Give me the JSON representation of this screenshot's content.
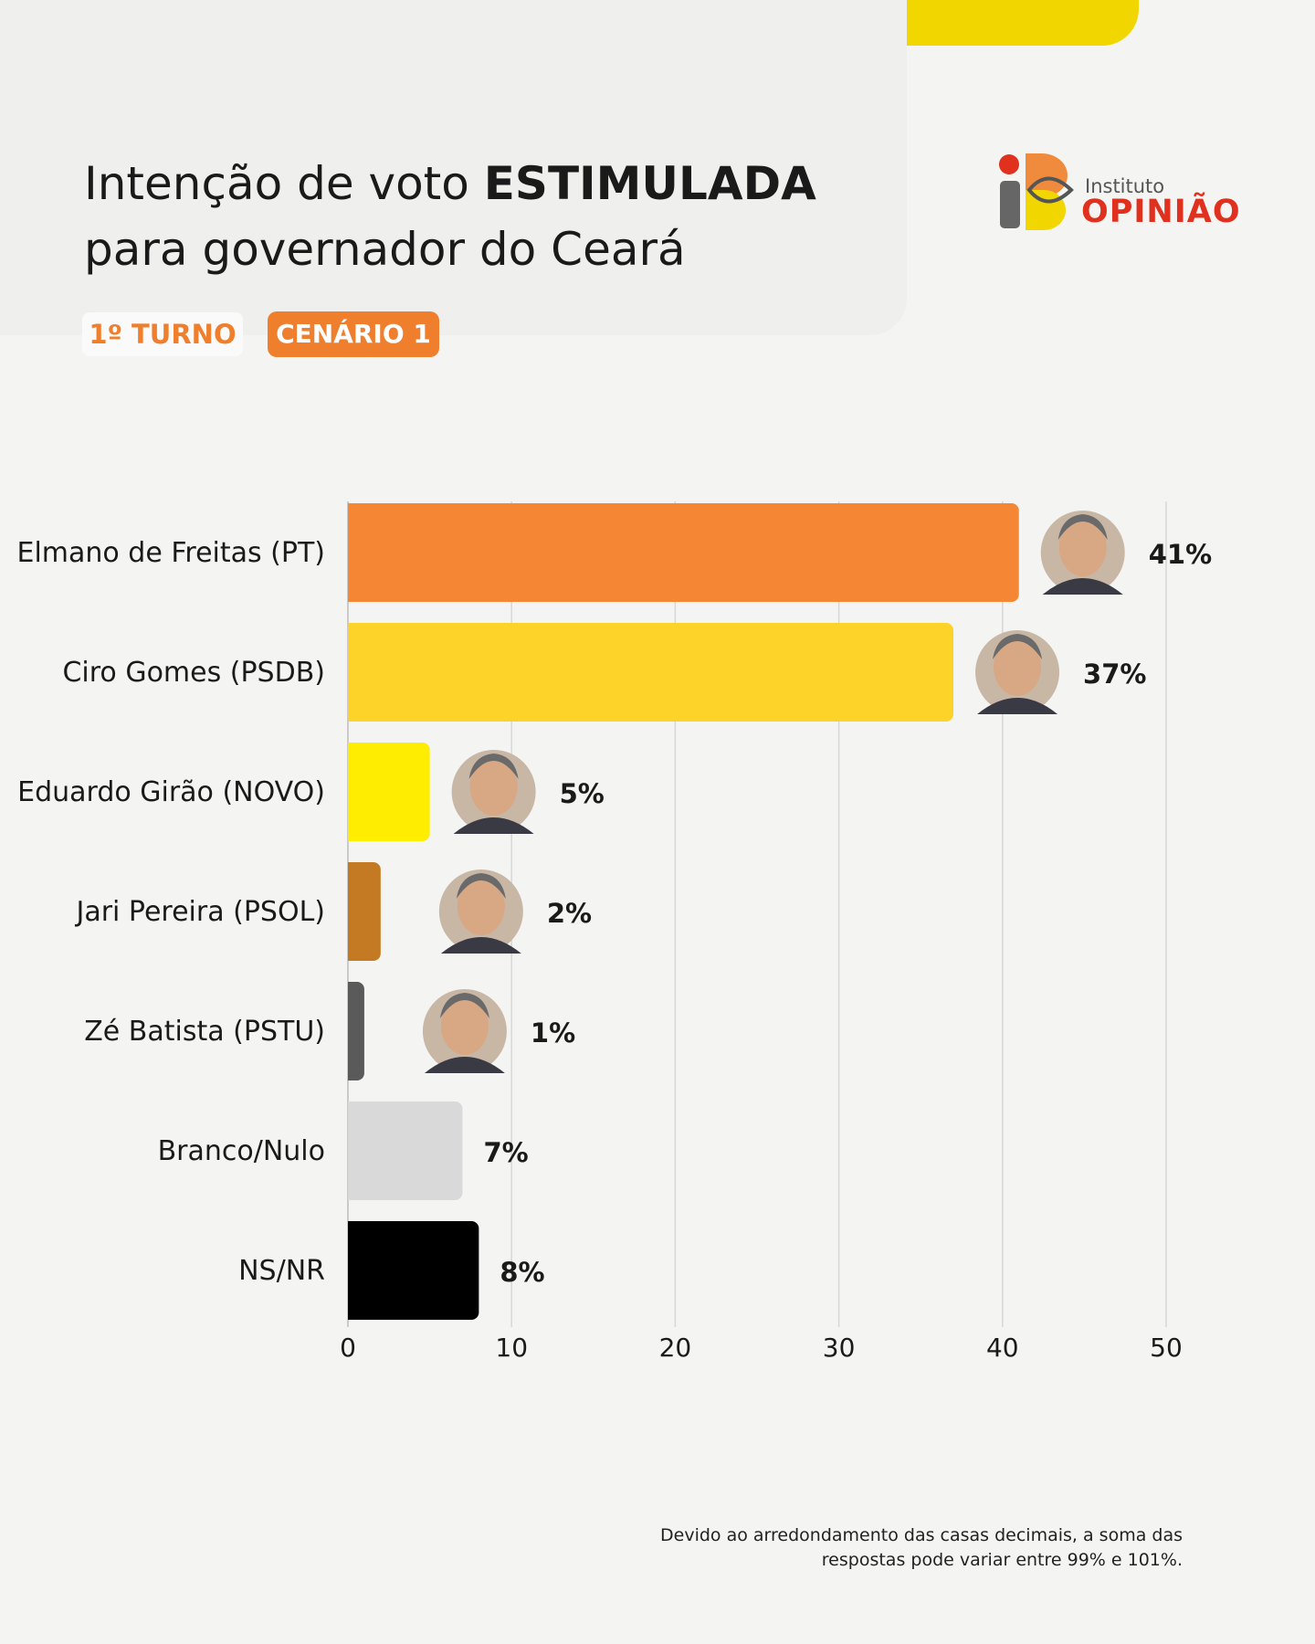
{
  "header": {
    "title_part1": "Intenção de voto ",
    "title_bold": "ESTIMULADA",
    "title_line2": "para governador do Ceará"
  },
  "badges": {
    "round": "1º TURNO",
    "scenario": "CENÁRIO 1"
  },
  "logo": {
    "line1": "Instituto",
    "line2": "OPINIÃO"
  },
  "chart_data": {
    "type": "bar",
    "orientation": "horizontal",
    "categories": [
      "Elmano de Freitas (PT)",
      "Ciro Gomes (PSDB)",
      "Eduardo Girão (NOVO)",
      "Jari Pereira (PSOL)",
      "Zé Batista (PSTU)",
      "Branco/Nulo",
      "NS/NR"
    ],
    "values": [
      41,
      37,
      5,
      2,
      1,
      7,
      8
    ],
    "value_labels": [
      "41%",
      "37%",
      "5%",
      "2%",
      "1%",
      "7%",
      "8%"
    ],
    "colors": [
      "#f58634",
      "#fdd32a",
      "#ffed00",
      "#c47a22",
      "#5a5a5a",
      "#d9d9d9",
      "#000000"
    ],
    "has_photo": [
      true,
      true,
      true,
      true,
      true,
      false,
      false
    ],
    "xlim": [
      0,
      50
    ],
    "xticks": [
      "0",
      "10",
      "20",
      "30",
      "40",
      "50"
    ],
    "grid": true,
    "xlabel": "",
    "ylabel": ""
  },
  "footnote": {
    "line1": "Devido ao arredondamento das casas decimais, a soma das",
    "line2": "respostas pode variar entre 99% e 101%."
  }
}
